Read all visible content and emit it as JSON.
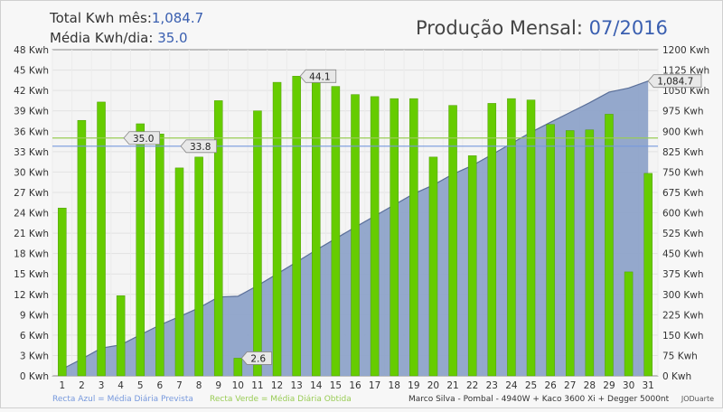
{
  "summary": {
    "total_label": "Total Kwh mês:",
    "total_value": "1,084.7",
    "avg_label": "Média Kwh/dia:",
    "avg_value": "35.0"
  },
  "title": {
    "prefix": "Produção Mensal:",
    "period": "07/2016"
  },
  "footer": {
    "blue_note": "Recta Azul = Média Diária Prevista",
    "green_note": "Recta Verde = Média Diária Obtida",
    "installation": "Marco Silva - Pombal - 4940W + Kaco 3600 Xi + Degger 5000nt",
    "credit": "JODuarte"
  },
  "colors": {
    "bar": "#66cc00",
    "area": "#8ea3c9",
    "area_line": "#5a6f99",
    "blue_line": "#7799dd",
    "green_line": "#99cc55",
    "title_accent": "#3a5fb0",
    "value_accent": "#3a5fb0"
  },
  "chart_data": {
    "type": "bar",
    "x": [
      1,
      2,
      3,
      4,
      5,
      6,
      7,
      8,
      9,
      10,
      11,
      12,
      13,
      14,
      15,
      16,
      17,
      18,
      19,
      20,
      21,
      22,
      23,
      24,
      25,
      26,
      27,
      28,
      29,
      30,
      31
    ],
    "series": [
      {
        "axis": "left",
        "unit": "Kwh",
        "values": [
          24.7,
          37.6,
          40.3,
          11.8,
          37.1,
          35.6,
          30.6,
          32.2,
          40.5,
          2.6,
          39.0,
          43.2,
          44.1,
          43.3,
          42.6,
          41.4,
          41.1,
          40.8,
          40.8,
          32.2,
          39.8,
          32.4,
          40.1,
          40.8,
          40.6,
          37.0,
          36.1,
          36.2,
          38.5,
          15.3,
          29.8
        ]
      },
      {
        "axis": "right",
        "type": "area",
        "unit": "Kwh",
        "values": [
          25,
          62,
          102,
          114,
          151,
          187,
          218,
          250,
          290,
          293,
          332,
          375,
          419,
          463,
          505,
          547,
          588,
          629,
          670,
          702,
          742,
          774,
          814,
          855,
          896,
          933,
          969,
          1005,
          1044,
          1059,
          1084.7
        ]
      }
    ],
    "reference_lines": [
      {
        "value": 35.0,
        "label": "35.0"
      },
      {
        "value": 33.8,
        "label": "33.8"
      }
    ],
    "point_labels": [
      {
        "day": 13,
        "label": "44.1"
      },
      {
        "day": 10,
        "label": "2.6"
      },
      {
        "day": 31,
        "label": "1,084.7",
        "axis": "right"
      }
    ],
    "y_left": {
      "min": 0,
      "max": 48,
      "step": 3,
      "suffix": " Kwh"
    },
    "y_right": {
      "min": 0,
      "max": 1200,
      "step": 75,
      "suffix": " Kwh"
    },
    "grid": true
  }
}
